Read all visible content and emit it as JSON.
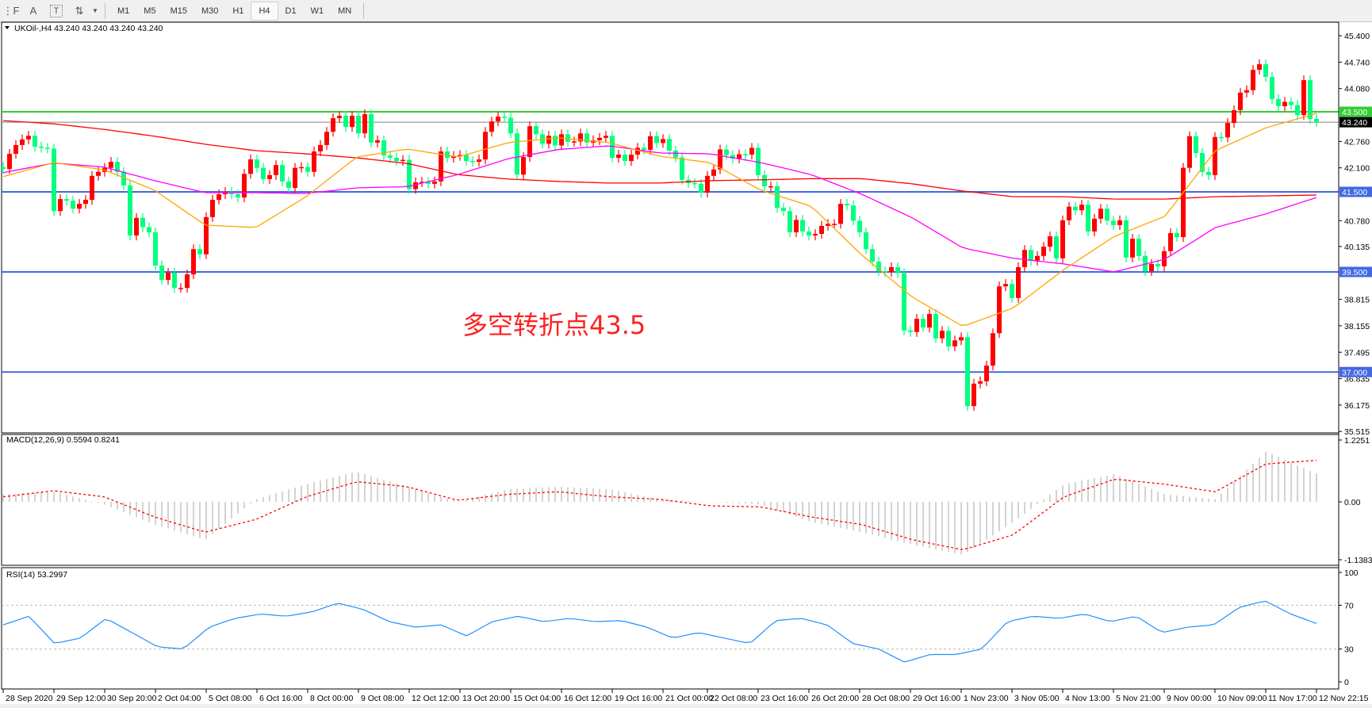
{
  "toolbar": {
    "tools": [
      {
        "name": "fibo-fan-tool-icon",
        "glyph": "⋮F"
      },
      {
        "name": "text-tool-icon",
        "glyph": "A"
      },
      {
        "name": "text-label-tool-icon",
        "glyph": "T"
      },
      {
        "name": "arrows-tool-icon",
        "glyph": "⇅"
      }
    ],
    "timeframes": [
      "M1",
      "M5",
      "M15",
      "M30",
      "H1",
      "H4",
      "D1",
      "W1",
      "MN"
    ],
    "active_timeframe": "H4"
  },
  "chart_header": "UKOil-,H4  43.240 43.240 43.240 43.240",
  "annotation": "多空转折点43.5",
  "colors": {
    "bull_candle": "#ff0000",
    "bear_candle": "#00ff7f",
    "ma_fast": "#ffa500",
    "ma_mid": "#ff00ff",
    "ma_slow": "#ff0000",
    "level_resistance": "#32cd32",
    "level_support": "#4169e1",
    "price_line": "#808080",
    "macd_histogram": "#c0c0c0",
    "macd_signal": "#ff0000",
    "rsi_line": "#1e90ff"
  },
  "chart_data": {
    "type": "candlestick",
    "symbol": "UKOil-",
    "timeframe": "H4",
    "x_tick_labels": [
      "28 Sep 2020",
      "29 Sep 12:00",
      "30 Sep 20:00",
      "2 Oct 04:00",
      "5 Oct 08:00",
      "6 Oct 16:00",
      "8 Oct 00:00",
      "9 Oct 08:00",
      "12 Oct 12:00",
      "13 Oct 20:00",
      "15 Oct 04:00",
      "16 Oct 12:00",
      "19 Oct 16:00",
      "21 Oct 00:00",
      "22 Oct 08:00",
      "23 Oct 16:00",
      "26 Oct 20:00",
      "28 Oct 08:00",
      "29 Oct 16:00",
      "1 Nov 23:00",
      "3 Nov 05:00",
      "4 Nov 13:00",
      "5 Nov 21:00",
      "9 Nov 00:00",
      "10 Nov 09:00",
      "11 Nov 17:00",
      "12 Nov 22:15"
    ],
    "y_tick_labels": [
      "45.400",
      "44.740",
      "44.080",
      "42.760",
      "42.100",
      "40.780",
      "40.135",
      "38.815",
      "38.155",
      "37.495",
      "36.835",
      "36.175",
      "35.515"
    ],
    "ylim": [
      35.515,
      45.4
    ],
    "close": [
      42.07,
      42.45,
      42.67,
      42.81,
      42.9,
      42.63,
      42.6,
      42.58,
      41.02,
      41.32,
      41.28,
      41.08,
      41.2,
      41.3,
      41.9,
      42.0,
      42.1,
      42.25,
      42.0,
      41.66,
      40.41,
      40.85,
      40.62,
      40.49,
      39.66,
      39.3,
      39.48,
      39.1,
      39.1,
      39.44,
      40.07,
      39.94,
      40.87,
      41.3,
      41.44,
      41.5,
      41.44,
      41.36,
      41.95,
      42.31,
      42.1,
      41.82,
      41.92,
      42.17,
      41.76,
      41.6,
      42.1,
      42.12,
      42.0,
      42.51,
      42.67,
      43.0,
      43.34,
      43.4,
      43.12,
      43.4,
      42.96,
      43.44,
      42.73,
      42.79,
      42.41,
      42.35,
      42.27,
      42.3,
      41.57,
      41.74,
      41.75,
      41.7,
      41.76,
      42.51,
      42.35,
      42.4,
      42.42,
      42.27,
      42.25,
      42.31,
      43.0,
      43.26,
      43.38,
      43.35,
      42.96,
      41.93,
      42.37,
      43.14,
      42.94,
      42.7,
      42.9,
      42.66,
      42.94,
      42.75,
      42.76,
      42.96,
      42.73,
      42.79,
      42.85,
      42.9,
      42.35,
      42.43,
      42.27,
      42.43,
      42.6,
      42.55,
      42.89,
      42.72,
      42.82,
      42.53,
      42.36,
      41.8,
      41.72,
      41.7,
      41.48,
      41.9,
      42.06,
      42.56,
      42.42,
      42.33,
      42.44,
      42.43,
      42.6,
      41.92,
      41.64,
      41.64,
      41.1,
      41.02,
      40.49,
      40.8,
      40.51,
      40.41,
      40.45,
      40.65,
      40.7,
      40.7,
      41.2,
      41.16,
      40.78,
      40.49,
      40.07,
      39.76,
      39.52,
      39.5,
      39.62,
      39.47,
      38.04,
      38.0,
      38.33,
      38.11,
      38.45,
      37.84,
      38.03,
      37.64,
      37.79,
      37.87,
      36.15,
      36.71,
      36.77,
      37.16,
      37.97,
      39.14,
      39.2,
      38.85,
      39.62,
      40.05,
      39.78,
      39.9,
      40.13,
      40.39,
      39.84,
      40.79,
      41.13,
      41.04,
      41.18,
      40.51,
      40.83,
      41.08,
      40.78,
      40.67,
      40.79,
      39.86,
      40.33,
      39.9,
      39.52,
      39.7,
      39.64,
      40.02,
      40.47,
      40.37,
      42.1,
      42.89,
      42.47,
      42.0,
      41.92,
      42.87,
      42.86,
      43.22,
      43.54,
      43.98,
      44.04,
      44.55,
      44.69,
      44.37,
      43.82,
      43.64,
      43.75,
      43.67,
      43.42,
      44.29,
      43.32,
      43.24
    ],
    "moving_averages_at_tick_labels": {
      "fast": [
        41.88,
        42.23,
        42.05,
        41.54,
        40.67,
        40.61,
        41.38,
        42.37,
        42.57,
        42.37,
        42.73,
        42.85,
        42.73,
        42.39,
        42.23,
        41.54,
        41.14,
        39.92,
        38.87,
        38.14,
        38.6,
        39.56,
        40.39,
        40.89,
        42.53,
        43.1,
        43.46
      ],
      "mid": [
        41.98,
        42.22,
        42.12,
        41.78,
        41.48,
        41.48,
        41.46,
        41.6,
        41.63,
        41.93,
        42.33,
        42.56,
        42.65,
        42.47,
        42.45,
        42.23,
        41.93,
        41.44,
        40.85,
        40.1,
        39.84,
        39.7,
        39.5,
        39.82,
        40.61,
        40.95,
        41.36
      ],
      "slow": [
        43.28,
        43.2,
        43.06,
        42.89,
        42.69,
        42.53,
        42.45,
        42.35,
        42.21,
        41.93,
        41.82,
        41.76,
        41.72,
        41.72,
        41.78,
        41.8,
        41.83,
        41.83,
        41.7,
        41.52,
        41.38,
        41.38,
        41.32,
        41.32,
        41.38,
        41.4,
        41.42
      ]
    },
    "levels": [
      {
        "price": 43.5,
        "label": "43.500",
        "kind": "resistance"
      },
      {
        "price": 43.24,
        "label": "43.240",
        "kind": "current"
      },
      {
        "price": 41.5,
        "label": "41.500",
        "kind": "support"
      },
      {
        "price": 39.5,
        "label": "39.500",
        "kind": "support"
      },
      {
        "price": 37.0,
        "label": "37.000",
        "kind": "support"
      }
    ],
    "macd": {
      "label": "MACD(12,26,9) 0.5594 0.8241",
      "axis_labels": [
        "1.2251",
        "0.00",
        "-1.1383"
      ],
      "ylim": [
        -1.1383,
        1.2251
      ],
      "main_at_tick_labels": [
        0.15,
        0.2,
        -0.05,
        -0.45,
        -0.75,
        0.05,
        0.35,
        0.6,
        0.3,
        0.0,
        0.25,
        0.3,
        0.25,
        0.05,
        0.0,
        -0.05,
        -0.4,
        -0.6,
        -0.85,
        -1.05,
        -0.4,
        0.35,
        0.55,
        0.15,
        0.05,
        1.0,
        0.5594
      ],
      "signal_at_tick_labels": [
        0.1,
        0.22,
        0.1,
        -0.3,
        -0.6,
        -0.35,
        0.1,
        0.4,
        0.3,
        0.03,
        0.15,
        0.2,
        0.1,
        0.05,
        -0.08,
        -0.1,
        -0.3,
        -0.45,
        -0.75,
        -0.95,
        -0.65,
        0.1,
        0.45,
        0.35,
        0.2,
        0.75,
        0.8241
      ]
    },
    "rsi": {
      "label": "RSI(14) 53.2997",
      "axis_labels": [
        "100",
        "70",
        "30",
        "0"
      ],
      "levels": [
        70,
        30
      ],
      "ylim": [
        0,
        100
      ],
      "values": [
        52,
        60,
        35,
        40,
        58,
        45,
        32,
        30,
        50,
        58,
        62,
        60,
        64,
        72,
        66,
        55,
        50,
        52,
        42,
        55,
        60,
        55,
        58,
        55,
        56,
        50,
        40,
        45,
        40,
        35,
        56,
        58,
        52,
        35,
        30,
        18,
        25,
        25,
        30,
        55,
        60,
        58,
        62,
        55,
        60,
        45,
        50,
        52,
        68,
        74,
        62,
        53.3
      ]
    }
  }
}
